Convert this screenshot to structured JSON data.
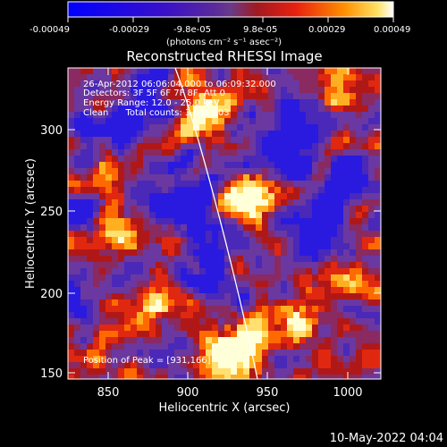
{
  "colorbar": {
    "ticks": [
      "-0.00049",
      "-0.00029",
      "-9.8e-05",
      "9.8e-05",
      "0.00029",
      "0.00049"
    ],
    "units": "(photons cm⁻² s⁻¹ asec⁻²)"
  },
  "title": "Reconstructed RHESSI Image",
  "info": {
    "time": "26-Apr-2012 06:06:04.000 to 06:09:32.000",
    "detectors": "Detectors: 3F 5F 6F 7F 8F, Att 0",
    "energy": "Energy Range: 12.0 - 25.0 keV",
    "clean": "Clean      Total counts: 3.09E+03",
    "peak": "Position of Peak = [931,166]"
  },
  "axes": {
    "xlabel": "Heliocentric X (arcsec)",
    "ylabel": "Heliocentric Y (arcsec)",
    "xticks": [
      "850",
      "900",
      "950",
      "1000"
    ],
    "yticks": [
      "150",
      "200",
      "250",
      "300"
    ],
    "xrange": [
      825,
      1017
    ],
    "yrange": [
      146,
      343
    ]
  },
  "footer": {
    "date": "10-May-2022 04:04"
  },
  "colors": {
    "background": "#000000",
    "limb": "#ffffff"
  }
}
